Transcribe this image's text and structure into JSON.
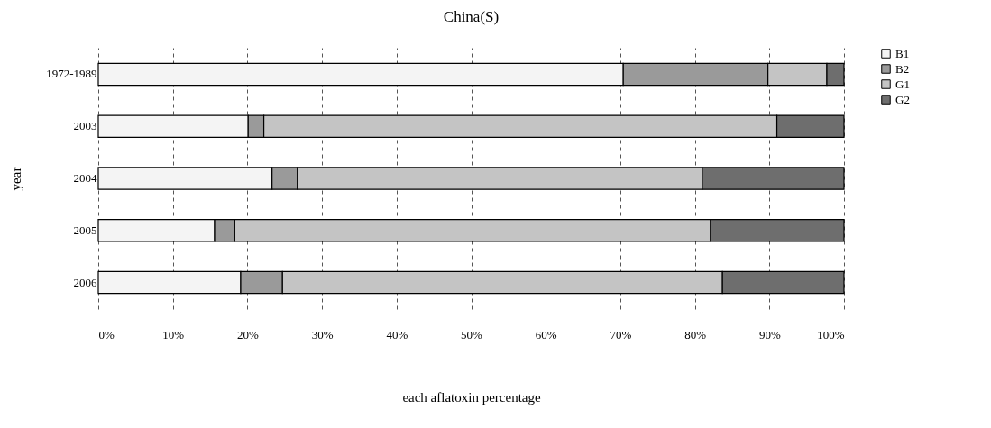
{
  "chart_data": {
    "type": "bar",
    "orientation": "horizontal",
    "stacked": true,
    "title": "China(S)",
    "xlabel": "each aflatoxin percentage",
    "ylabel": "year",
    "categories": [
      "1972-1989",
      "2003",
      "2004",
      "2005",
      "2006"
    ],
    "series": [
      {
        "name": "B1",
        "color": "#f4f4f4",
        "values": [
          70.4,
          20.1,
          23.3,
          15.6,
          19.1
        ]
      },
      {
        "name": "B2",
        "color": "#9a9a9a",
        "values": [
          19.4,
          2.1,
          3.4,
          2.7,
          5.6
        ]
      },
      {
        "name": "G1",
        "color": "#c4c4c4",
        "values": [
          7.9,
          68.8,
          54.3,
          63.8,
          59.0
        ]
      },
      {
        "name": "G2",
        "color": "#6e6e6e",
        "values": [
          2.3,
          9.0,
          19.0,
          17.9,
          16.3
        ]
      }
    ],
    "xlim": [
      0,
      100
    ],
    "xticks": [
      {
        "value": 0,
        "label": "0%"
      },
      {
        "value": 10,
        "label": "10%"
      },
      {
        "value": 20,
        "label": "20%"
      },
      {
        "value": 30,
        "label": "30%"
      },
      {
        "value": 40,
        "label": "40%"
      },
      {
        "value": 50,
        "label": "50%"
      },
      {
        "value": 60,
        "label": "60%"
      },
      {
        "value": 70,
        "label": "70%"
      },
      {
        "value": 80,
        "label": "80%"
      },
      {
        "value": 90,
        "label": "90%"
      },
      {
        "value": 100,
        "label": "100%"
      }
    ],
    "grid": "x",
    "legend": "right"
  }
}
